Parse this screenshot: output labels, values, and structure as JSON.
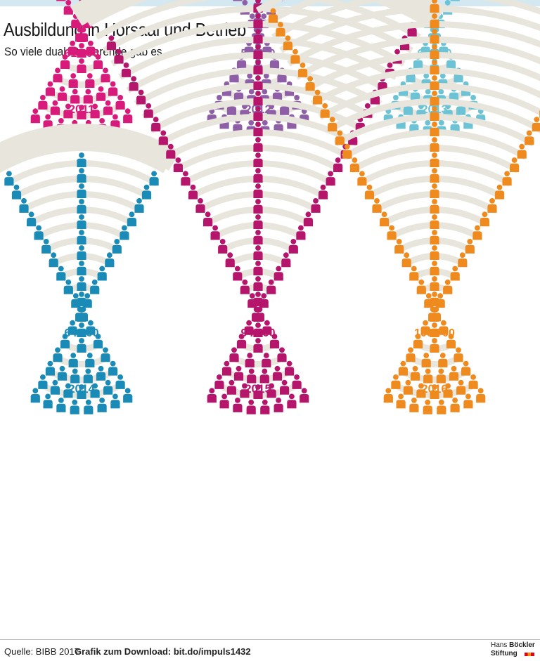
{
  "header": {
    "title": "Ausbildung in Hörsaal und Betrieb",
    "subtitle": "So viele dual Studierende gab es ..."
  },
  "footer": {
    "source": "Quelle: BIBB 2017",
    "download": "Grafik zum Download: bit.do/impuls1432",
    "logo_line1_a": "Hans",
    "logo_line1_b": "Böckler",
    "logo_line2": "Stiftung"
  },
  "colors": {
    "seat": "#e8e6dc",
    "accent_bar": "#d3e8f1"
  },
  "chart_data": {
    "type": "pictogram",
    "title": "Ausbildung in Hörsaal und Betrieb",
    "subtitle": "So viele dual Studierende gab es ...",
    "categories": [
      "2011",
      "2012",
      "2013",
      "2014",
      "2015",
      "2016"
    ],
    "values": [
      61200,
      59600,
      64100,
      64400,
      94700,
      100700
    ],
    "value_labels": [
      "61 200",
      "59 600",
      "64 100",
      "64 400",
      "94 700",
      "100 700"
    ],
    "colors": [
      "#d81b7a",
      "#8e5ea6",
      "#6cc3d5",
      "#1a8bb6",
      "#b5156b",
      "#ef8a1f"
    ]
  }
}
